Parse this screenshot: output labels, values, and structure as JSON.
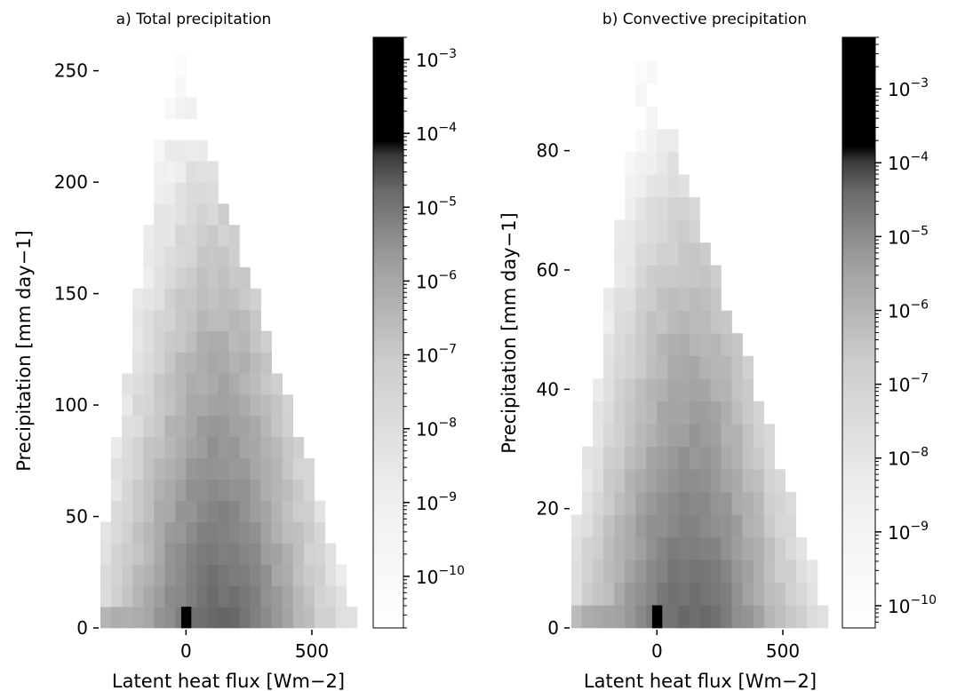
{
  "chart_data": [
    {
      "type": "heatmap",
      "title": "a) Total precipitation",
      "xlabel": "Latent heat flux [Wm−2]",
      "ylabel": "Precipitation [mm day−1]",
      "xlim": [
        -340,
        680
      ],
      "ylim": [
        0,
        265
      ],
      "xticks": [
        0,
        500
      ],
      "yticks": [
        0,
        50,
        100,
        150,
        200,
        250
      ],
      "grid": false,
      "colorbar": {
        "scale": "log",
        "colormap": "gray_r",
        "vmin": 2e-11,
        "vmax": 0.002,
        "ticks": [
          {
            "value": 0.001,
            "base": "10",
            "exp": "−3"
          },
          {
            "value": 0.0001,
            "base": "10",
            "exp": "−4"
          },
          {
            "value": 1e-05,
            "base": "10",
            "exp": "−5"
          },
          {
            "value": 1e-06,
            "base": "10",
            "exp": "−6"
          },
          {
            "value": 1e-07,
            "base": "10",
            "exp": "−7"
          },
          {
            "value": 1e-08,
            "base": "10",
            "exp": "−8"
          },
          {
            "value": 1e-09,
            "base": "10",
            "exp": "−9"
          },
          {
            "value": 1e-10,
            "base": "10",
            "exp": "−10"
          }
        ]
      }
    },
    {
      "type": "heatmap",
      "title": "b) Convective precipitation",
      "xlabel": "Latent heat flux [Wm−2]",
      "ylabel": "Precipitation [mm day−1]",
      "xlim": [
        -340,
        680
      ],
      "ylim": [
        0,
        99
      ],
      "xticks": [
        0,
        500
      ],
      "yticks": [
        0,
        20,
        40,
        60,
        80
      ],
      "grid": false,
      "colorbar": {
        "scale": "log",
        "colormap": "gray_r",
        "vmin": 5e-11,
        "vmax": 0.005,
        "ticks": [
          {
            "value": 0.001,
            "base": "10",
            "exp": "−3"
          },
          {
            "value": 0.0001,
            "base": "10",
            "exp": "−4"
          },
          {
            "value": 1e-05,
            "base": "10",
            "exp": "−5"
          },
          {
            "value": 1e-06,
            "base": "10",
            "exp": "−6"
          },
          {
            "value": 1e-07,
            "base": "10",
            "exp": "−7"
          },
          {
            "value": 1e-08,
            "base": "10",
            "exp": "−8"
          },
          {
            "value": 1e-09,
            "base": "10",
            "exp": "−9"
          },
          {
            "value": 1e-10,
            "base": "10",
            "exp": "−10"
          }
        ]
      }
    }
  ]
}
